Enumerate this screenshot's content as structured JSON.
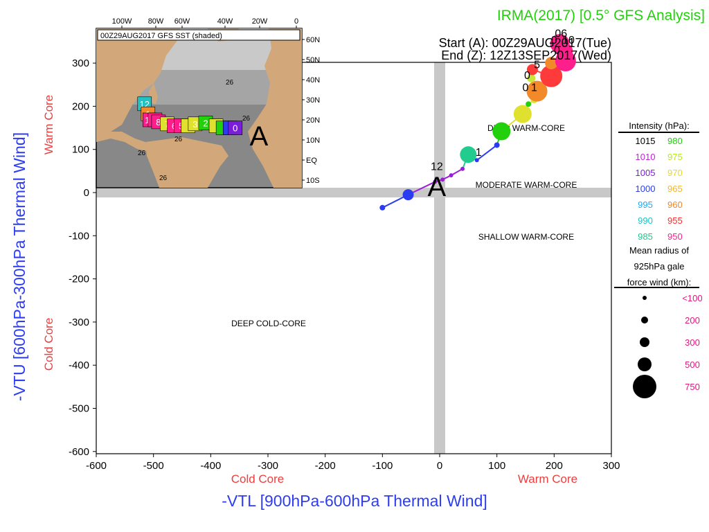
{
  "chart_data": {
    "type": "scatter",
    "title": "IRMA(2017) [0.5° GFS Analysis]",
    "start_text": "Start (A): 00Z29AUG2017(Tue)",
    "end_text": "End (Z): 12Z13SEP2017(Wed)",
    "xlabel": "-VTL [900hPa-600hPa Thermal Wind]",
    "ylabel": "-VTU [600hPa-300hPa Thermal Wind]",
    "x_cold": "Cold Core",
    "x_warm": "Warm Core",
    "y_cold": "Cold Core",
    "y_warm": "Warm Core",
    "xlim": [
      -600,
      300
    ],
    "ylim": [
      -600,
      350
    ],
    "xticks": [
      "-600",
      "-500",
      "-400",
      "-300",
      "-200",
      "-100",
      "0",
      "100",
      "200",
      "300"
    ],
    "yticks": [
      "300",
      "200",
      "100",
      "0",
      "-100",
      "-200",
      "-300",
      "-400",
      "-500",
      "-600"
    ],
    "regions": {
      "deep_warm": "DEEP WARM-CORE",
      "moderate_warm": "MODERATE WARM-CORE",
      "shallow_warm": "SHALLOW WARM-CORE",
      "deep_cold": "DEEP COLD-CORE"
    },
    "start_marker": "A",
    "track": [
      {
        "x": -100,
        "y": -35,
        "color": "#2b3cf0",
        "r": 4
      },
      {
        "x": -55,
        "y": -5,
        "color": "#2b3cf0",
        "r": 8
      },
      {
        "x": -8,
        "y": 25,
        "color": "#9c1dd9",
        "r": 3
      },
      {
        "x": 5,
        "y": 30,
        "color": "#9c1dd9",
        "r": 3
      },
      {
        "x": 20,
        "y": 40,
        "color": "#9c1dd9",
        "r": 3
      },
      {
        "x": 40,
        "y": 55,
        "color": "#9c1dd9",
        "r": 3
      },
      {
        "x": 50,
        "y": 88,
        "color": "#21cc8e",
        "r": 12
      },
      {
        "x": 65,
        "y": 75,
        "color": "#2b3cf0",
        "r": 3
      },
      {
        "x": 100,
        "y": 110,
        "color": "#2b3cf0",
        "r": 4
      },
      {
        "x": 108,
        "y": 142,
        "color": "#22d10b",
        "r": 13
      },
      {
        "x": 145,
        "y": 182,
        "color": "#dfe12e",
        "r": 13
      },
      {
        "x": 155,
        "y": 205,
        "color": "#22d10b",
        "r": 4
      },
      {
        "x": 165,
        "y": 215,
        "color": "#dfe12e",
        "r": 5
      },
      {
        "x": 170,
        "y": 235,
        "color": "#f28a2a",
        "r": 15
      },
      {
        "x": 160,
        "y": 265,
        "color": "#c8e639",
        "r": 6
      },
      {
        "x": 162,
        "y": 285,
        "color": "#ff3a3a",
        "r": 8
      },
      {
        "x": 195,
        "y": 270,
        "color": "#ff3a3a",
        "r": 16
      },
      {
        "x": 195,
        "y": 300,
        "color": "#f28a2a",
        "r": 9
      },
      {
        "x": 220,
        "y": 305,
        "color": "#ff1f8c",
        "r": 15
      },
      {
        "x": 218,
        "y": 328,
        "color": "#ff1f8c",
        "r": 12
      },
      {
        "x": 210,
        "y": 345,
        "color": "#ff1f8c",
        "r": 14
      }
    ],
    "track_labels": [
      {
        "text": "12",
        "x": -5,
        "y": 52
      },
      {
        "text": "1",
        "x": 68,
        "y": 85
      },
      {
        "text": "0",
        "x": 150,
        "y": 235
      },
      {
        "text": "1",
        "x": 165,
        "y": 235
      },
      {
        "text": "0",
        "x": 153,
        "y": 263
      },
      {
        "text": "5",
        "x": 170,
        "y": 288
      },
      {
        "text": "0",
        "x": 205,
        "y": 322
      },
      {
        "text": "06",
        "x": 212,
        "y": 360
      },
      {
        "text": "0",
        "x": 200,
        "y": 345
      },
      {
        "text": "10",
        "x": 225,
        "y": 345
      }
    ],
    "intensity_legend": {
      "title": "Intensity (hPa):",
      "entries": [
        {
          "label": "1015",
          "color": "#000000"
        },
        {
          "label": "980",
          "color": "#22d10b"
        },
        {
          "label": "1010",
          "color": "#c41dd9"
        },
        {
          "label": "975",
          "color": "#b8e82a"
        },
        {
          "label": "1005",
          "color": "#7a1dd9"
        },
        {
          "label": "970",
          "color": "#e8d82a"
        },
        {
          "label": "1000",
          "color": "#2b3cf0"
        },
        {
          "label": "965",
          "color": "#f2b72a"
        },
        {
          "label": "995",
          "color": "#1ea9f0"
        },
        {
          "label": "960",
          "color": "#f2862a"
        },
        {
          "label": "990",
          "color": "#18c6c6"
        },
        {
          "label": "955",
          "color": "#ff2a2a"
        },
        {
          "label": "985",
          "color": "#1fc98a"
        },
        {
          "label": "950",
          "color": "#ff1f8c"
        }
      ]
    },
    "radius_legend": {
      "title_1": "Mean radius of",
      "title_2": "925hPa gale",
      "title_3": "force wind (km):",
      "entries": [
        {
          "label": "<100",
          "r": 3
        },
        {
          "label": "200",
          "r": 5
        },
        {
          "label": "300",
          "r": 7
        },
        {
          "label": "500",
          "r": 10
        },
        {
          "label": "750",
          "r": 17
        }
      ],
      "label_color": "#e0157f"
    },
    "inset": {
      "title": "00Z29AUG2017 GFS SST (shaded)",
      "lon_labels": [
        "100W",
        "80W",
        "60W",
        "40W",
        "20W",
        "0"
      ],
      "lat_labels": [
        "60N",
        "50N",
        "40N",
        "30N",
        "20N",
        "10N",
        "EQ",
        "10S"
      ],
      "contour_labels": [
        "26",
        "26",
        "26",
        "26",
        "26"
      ],
      "start_marker": "A",
      "boxes": [
        {
          "lon": -87,
          "lat": 28,
          "color": "#22c2c2",
          "label": "12"
        },
        {
          "lon": -85,
          "lat": 23,
          "color": "#f28a2a",
          "label": "1"
        },
        {
          "lon": -84,
          "lat": 20,
          "color": "#ff1f8c",
          "label": "10"
        },
        {
          "lon": -81,
          "lat": 20,
          "color": "#ff1f8c",
          "label": ""
        },
        {
          "lon": -79,
          "lat": 19,
          "color": "#ff1f8c",
          "label": "8"
        },
        {
          "lon": -74,
          "lat": 18,
          "color": "#dfe12e",
          "label": "7"
        },
        {
          "lon": -70,
          "lat": 17,
          "color": "#ff1f8c",
          "label": "6"
        },
        {
          "lon": -66,
          "lat": 17,
          "color": "#ff1f8c",
          "label": "5"
        },
        {
          "lon": -62,
          "lat": 17,
          "color": "#dfe12e",
          "label": ""
        },
        {
          "lon": -58,
          "lat": 18,
          "color": "#dfe12e",
          "label": "3"
        },
        {
          "lon": -52,
          "lat": 18.5,
          "color": "#22d10b",
          "label": "2"
        },
        {
          "lon": -46,
          "lat": 17,
          "color": "#dfe12e",
          "label": ""
        },
        {
          "lon": -42,
          "lat": 16,
          "color": "#22d10b",
          "label": ""
        },
        {
          "lon": -38,
          "lat": 16,
          "color": "#2b3cf0",
          "label": "1"
        },
        {
          "lon": -35,
          "lat": 16,
          "color": "#7a1dd9",
          "label": "0"
        }
      ]
    }
  }
}
